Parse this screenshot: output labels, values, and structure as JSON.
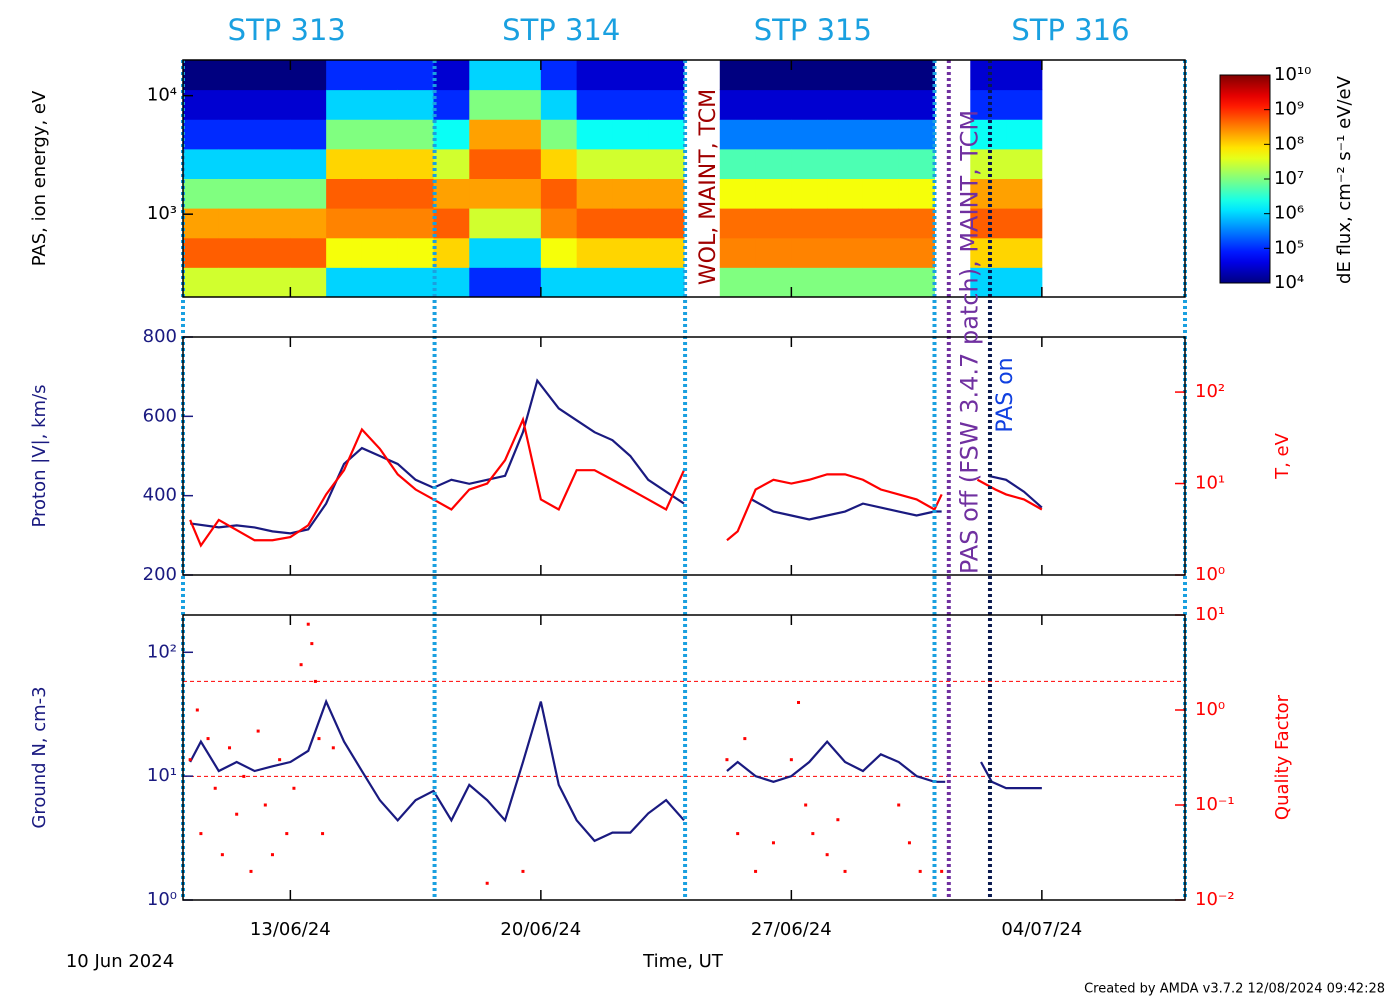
{
  "time_axis": {
    "xlim": [
      0,
      28
    ],
    "xticks": [
      {
        "value": 3,
        "label": "13/06/24"
      },
      {
        "value": 10,
        "label": "20/06/24"
      },
      {
        "value": 17,
        "label": "27/06/24"
      },
      {
        "value": 24,
        "label": "04/07/24"
      }
    ],
    "x_label": "Time, UT",
    "origin_label": "10 Jun 2024"
  },
  "stp_labels": [
    {
      "text": "STP 313",
      "x": 2.9
    },
    {
      "text": "STP 314",
      "x": 10.57
    },
    {
      "text": "STP 315",
      "x": 17.6
    },
    {
      "text": "STP 316",
      "x": 24.8
    }
  ],
  "stp_color": "#1aa0e0",
  "event_lines": [
    {
      "x": 0,
      "color": "#1aa0e0"
    },
    {
      "x": 7.03,
      "color": "#1aa0e0"
    },
    {
      "x": 14.03,
      "color": "#1aa0e0"
    },
    {
      "x": 21.0,
      "color": "#1aa0e0"
    },
    {
      "x": 21.4,
      "color": "#7030a0"
    },
    {
      "x": 22.55,
      "color": "#0a1a50"
    },
    {
      "x": 28,
      "color": "#1aa0e0"
    }
  ],
  "event_labels": [
    {
      "text": "WOL, MAINT, TCM",
      "x": 14.7,
      "color": "#a00000"
    },
    {
      "text": "PAS off (FSW 3.4.7 patch), MAINT, TCM",
      "x": 22.0,
      "color": "#7030a0"
    },
    {
      "text": "PAS on",
      "x": 23.0,
      "color": "#1040e0"
    }
  ],
  "credit": "Created by AMDA v3.7.2 12/08/2024 09:42:28",
  "chart_data": [
    {
      "type": "spectrogram",
      "y_label": "PAS, ion energy, eV",
      "y_log": true,
      "ylim": [
        200,
        20000
      ],
      "yticks": [
        {
          "value": 1000,
          "label": "10³"
        },
        {
          "value": 10000,
          "label": "10⁴"
        }
      ],
      "x_edges": [
        0,
        1,
        2,
        3,
        4,
        5,
        6,
        7,
        8,
        9,
        10,
        11,
        12,
        13,
        14,
        15,
        16,
        17,
        18,
        19,
        20,
        21,
        22,
        23,
        24
      ],
      "energy_edges": [
        200,
        356,
        632,
        1125,
        2000,
        3557,
        6325,
        11247,
        20000
      ],
      "z": [
        [
          30000000.0,
          500000000.0,
          200000000.0,
          10000000.0,
          1000000.0,
          100000.0,
          30000.0,
          10000.0
        ],
        [
          30000000.0,
          500000000.0,
          200000000.0,
          10000000.0,
          1000000.0,
          100000.0,
          30000.0,
          10000.0
        ],
        [
          30000000.0,
          500000000.0,
          200000000.0,
          10000000.0,
          1000000.0,
          100000.0,
          30000.0,
          10000.0
        ],
        [
          30000000.0,
          500000000.0,
          200000000.0,
          10000000.0,
          1000000.0,
          100000.0,
          30000.0,
          10000.0
        ],
        [
          1000000.0,
          50000000.0,
          300000000.0,
          500000000.0,
          100000000.0,
          10000000.0,
          1000000.0,
          100000.0
        ],
        [
          1000000.0,
          50000000.0,
          300000000.0,
          500000000.0,
          100000000.0,
          10000000.0,
          1000000.0,
          100000.0
        ],
        [
          1000000.0,
          50000000.0,
          300000000.0,
          500000000.0,
          100000000.0,
          10000000.0,
          1000000.0,
          100000.0
        ],
        [
          1000000.0,
          100000000.0,
          500000000.0,
          200000000.0,
          30000000.0,
          2000000.0,
          100000.0,
          30000.0
        ],
        [
          100000.0,
          1000000.0,
          30000000.0,
          200000000.0,
          500000000.0,
          200000000.0,
          10000000.0,
          1000000.0
        ],
        [
          100000.0,
          1000000.0,
          30000000.0,
          200000000.0,
          500000000.0,
          200000000.0,
          10000000.0,
          1000000.0
        ],
        [
          1000000.0,
          50000000.0,
          300000000.0,
          500000000.0,
          100000000.0,
          10000000.0,
          1000000.0,
          100000.0
        ],
        [
          1000000.0,
          100000000.0,
          500000000.0,
          200000000.0,
          30000000.0,
          2000000.0,
          100000.0,
          30000.0
        ],
        [
          1000000.0,
          100000000.0,
          500000000.0,
          200000000.0,
          30000000.0,
          2000000.0,
          100000.0,
          30000.0
        ],
        [
          1000000.0,
          100000000.0,
          500000000.0,
          200000000.0,
          30000000.0,
          2000000.0,
          100000.0,
          30000.0
        ],
        [
          null,
          null,
          null,
          null,
          null,
          null,
          null,
          null
        ],
        [
          10000000.0,
          300000000.0,
          400000000.0,
          50000000.0,
          5000000.0,
          300000.0,
          30000.0,
          10000.0
        ],
        [
          10000000.0,
          300000000.0,
          400000000.0,
          50000000.0,
          5000000.0,
          300000.0,
          30000.0,
          10000.0
        ],
        [
          10000000.0,
          300000000.0,
          400000000.0,
          50000000.0,
          5000000.0,
          300000.0,
          30000.0,
          10000.0
        ],
        [
          10000000.0,
          300000000.0,
          400000000.0,
          50000000.0,
          5000000.0,
          300000.0,
          30000.0,
          10000.0
        ],
        [
          10000000.0,
          300000000.0,
          400000000.0,
          50000000.0,
          5000000.0,
          300000.0,
          30000.0,
          10000.0
        ],
        [
          10000000.0,
          300000000.0,
          400000000.0,
          50000000.0,
          5000000.0,
          300000.0,
          30000.0,
          10000.0
        ],
        [
          null,
          null,
          null,
          null,
          null,
          null,
          null,
          null
        ],
        [
          1000000.0,
          100000000.0,
          500000000.0,
          200000000.0,
          30000000.0,
          2000000.0,
          100000.0,
          30000.0
        ],
        [
          1000000.0,
          100000000.0,
          500000000.0,
          200000000.0,
          30000000.0,
          2000000.0,
          100000.0,
          30000.0
        ]
      ],
      "colormap": "jet",
      "colorbar": {
        "label": "dE flux, cm⁻² s⁻¹ eV/eV",
        "log": true,
        "clim": [
          10000.0,
          10000000000.0
        ],
        "cticks": [
          {
            "value": 10000.0,
            "label": "10⁴"
          },
          {
            "value": 100000.0,
            "label": "10⁵"
          },
          {
            "value": 1000000.0,
            "label": "10⁶"
          },
          {
            "value": 10000000.0,
            "label": "10⁷"
          },
          {
            "value": 100000000.0,
            "label": "10⁸"
          },
          {
            "value": 1000000000.0,
            "label": "10⁹"
          },
          {
            "value": 10000000000.0,
            "label": "10¹⁰"
          }
        ]
      }
    },
    {
      "type": "line",
      "y_label": "Proton |V|, km/s",
      "y_color": "#1a1a80",
      "y2_label": "T, eV",
      "y2_color": "#ff0000",
      "ylim": [
        200,
        800
      ],
      "yticks": [
        200,
        400,
        600,
        800
      ],
      "y2_log": true,
      "y2lim": [
        1,
        400
      ],
      "y2ticks": [
        {
          "value": 1,
          "label": "10⁰"
        },
        {
          "value": 10,
          "label": "10¹"
        },
        {
          "value": 100,
          "label": "10²"
        }
      ],
      "series": [
        {
          "color": "#1a1a80",
          "x": [
            0.2,
            1,
            1.5,
            2,
            2.5,
            3,
            3.5,
            4,
            4.5,
            5,
            5.5,
            6,
            6.5,
            7,
            7.5,
            8,
            8.5,
            9,
            9.5,
            9.9,
            10.5,
            11,
            11.5,
            12,
            12.5,
            13,
            13.5,
            14,
            14.5,
            15.9,
            16.5,
            17,
            17.5,
            18,
            18.5,
            19,
            19.5,
            20,
            20.5,
            21,
            21.2,
            21.8,
            22.5,
            23,
            23.5,
            24
          ],
          "values": [
            330,
            320,
            325,
            320,
            310,
            305,
            315,
            380,
            480,
            520,
            500,
            480,
            440,
            420,
            440,
            430,
            440,
            450,
            560,
            690,
            620,
            590,
            560,
            540,
            500,
            440,
            410,
            380,
            null,
            390,
            360,
            350,
            340,
            350,
            360,
            380,
            370,
            360,
            350,
            360,
            360,
            null,
            450,
            440,
            410,
            370
          ]
        },
        {
          "color": "#ff0000",
          "axis": "y2",
          "x": [
            0.2,
            0.5,
            1,
            1.5,
            2,
            2.5,
            3,
            3.5,
            4,
            4.5,
            5,
            5.5,
            6,
            6.5,
            7,
            7.5,
            8,
            8.5,
            9,
            9.5,
            10,
            10.5,
            11,
            11.5,
            12,
            12.5,
            13,
            13.5,
            14,
            14.6,
            15.2,
            15.5,
            16,
            16.5,
            17,
            17.5,
            18,
            18.5,
            19,
            19.5,
            20,
            20.5,
            21,
            21.2,
            21.8,
            22.2,
            22.7,
            23,
            23.5,
            24
          ],
          "values": [
            4,
            2.1,
            4,
            3.1,
            2.4,
            2.4,
            2.6,
            3.5,
            7.6,
            14,
            39,
            24,
            12.6,
            8.6,
            6.7,
            5.2,
            8.6,
            10,
            18,
            50,
            6.7,
            5.2,
            14,
            14,
            11,
            8.6,
            6.7,
            5.2,
            14,
            null,
            2.4,
            3,
            8.6,
            11,
            10,
            11,
            12.6,
            12.6,
            11,
            8.6,
            7.6,
            6.7,
            5.2,
            7.6,
            null,
            11,
            8.6,
            7.6,
            6.7,
            5.2
          ]
        }
      ]
    },
    {
      "type": "line",
      "y_label": "Ground N, cm-3",
      "y_color": "#1a1a80",
      "y2_label": "Quality Factor",
      "y2_color": "#ff0000",
      "y_log": true,
      "ylim": [
        1,
        200
      ],
      "yticks": [
        {
          "value": 1,
          "label": "10⁰"
        },
        {
          "value": 10,
          "label": "10¹"
        },
        {
          "value": 100,
          "label": "10²"
        }
      ],
      "y2_log": true,
      "y2lim": [
        0.01,
        10
      ],
      "y2ticks": [
        {
          "value": 0.01,
          "label": "10⁻²"
        },
        {
          "value": 0.1,
          "label": "10⁻¹"
        },
        {
          "value": 1,
          "label": "10⁰"
        },
        {
          "value": 10,
          "label": "10¹"
        }
      ],
      "y2_reference_lines": [
        2,
        0.2
      ],
      "series": [
        {
          "color": "#1a1a80",
          "x": [
            0.2,
            0.5,
            1,
            1.5,
            2,
            2.5,
            3,
            3.5,
            4,
            4.5,
            5,
            5.5,
            6,
            6.5,
            7,
            7.5,
            8,
            8.5,
            9,
            9.5,
            10,
            10.5,
            11,
            11.5,
            12,
            12.5,
            13,
            13.5,
            14,
            14.6,
            15.2,
            15.5,
            16,
            16.5,
            17,
            17.5,
            18,
            18.5,
            19,
            19.5,
            20,
            20.5,
            21,
            21.3,
            21.8,
            22.3,
            22.6,
            23,
            23.5,
            24
          ],
          "values": [
            13,
            19,
            11,
            13,
            11,
            12,
            13,
            16,
            40,
            19,
            11,
            6.4,
            4.4,
            6.4,
            7.6,
            4.4,
            8.5,
            6.4,
            4.4,
            13,
            40,
            8.5,
            4.4,
            3,
            3.5,
            3.5,
            5,
            6.4,
            4.4,
            null,
            11,
            13,
            10,
            9,
            10,
            13,
            19,
            13,
            11,
            15,
            13,
            10,
            9,
            9,
            null,
            13,
            9,
            8,
            8,
            8
          ]
        },
        {
          "color": "#ff0000",
          "axis": "y2",
          "mode": "points",
          "x": [
            0.2,
            0.4,
            0.5,
            0.7,
            0.9,
            1.1,
            1.3,
            1.5,
            1.7,
            1.9,
            2.1,
            2.3,
            2.5,
            2.7,
            2.9,
            3.1,
            3.3,
            3.5,
            3.6,
            3.7,
            3.8,
            3.9,
            4.2,
            8.5,
            9.5,
            15.2,
            15.5,
            15.7,
            16,
            16.5,
            17,
            17.2,
            17.4,
            17.6,
            18,
            18.3,
            18.5,
            20,
            20.3,
            20.6,
            21.2
          ],
          "values": [
            0.3,
            1.0,
            0.05,
            0.5,
            0.15,
            0.03,
            0.4,
            0.08,
            0.2,
            0.02,
            0.6,
            0.1,
            0.03,
            0.3,
            0.05,
            0.15,
            3,
            8,
            5,
            2,
            0.5,
            0.05,
            0.4,
            0.015,
            0.02,
            0.3,
            0.05,
            0.5,
            0.02,
            0.04,
            0.3,
            1.2,
            0.1,
            0.05,
            0.03,
            0.07,
            0.02,
            0.1,
            0.04,
            0.02,
            0.02
          ]
        }
      ]
    }
  ]
}
